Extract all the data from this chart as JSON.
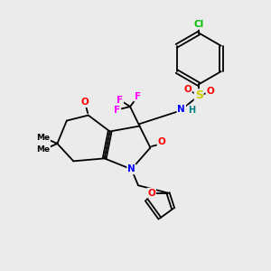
{
  "bg_color": "#ebebeb",
  "bond_color": "#000000",
  "atom_colors": {
    "O": "#ff0000",
    "N": "#0000ff",
    "F": "#ff00ff",
    "S": "#cccc00",
    "Cl": "#00bb00",
    "H": "#008080",
    "C": "#000000"
  },
  "figsize": [
    3.0,
    3.0
  ],
  "dpi": 100
}
